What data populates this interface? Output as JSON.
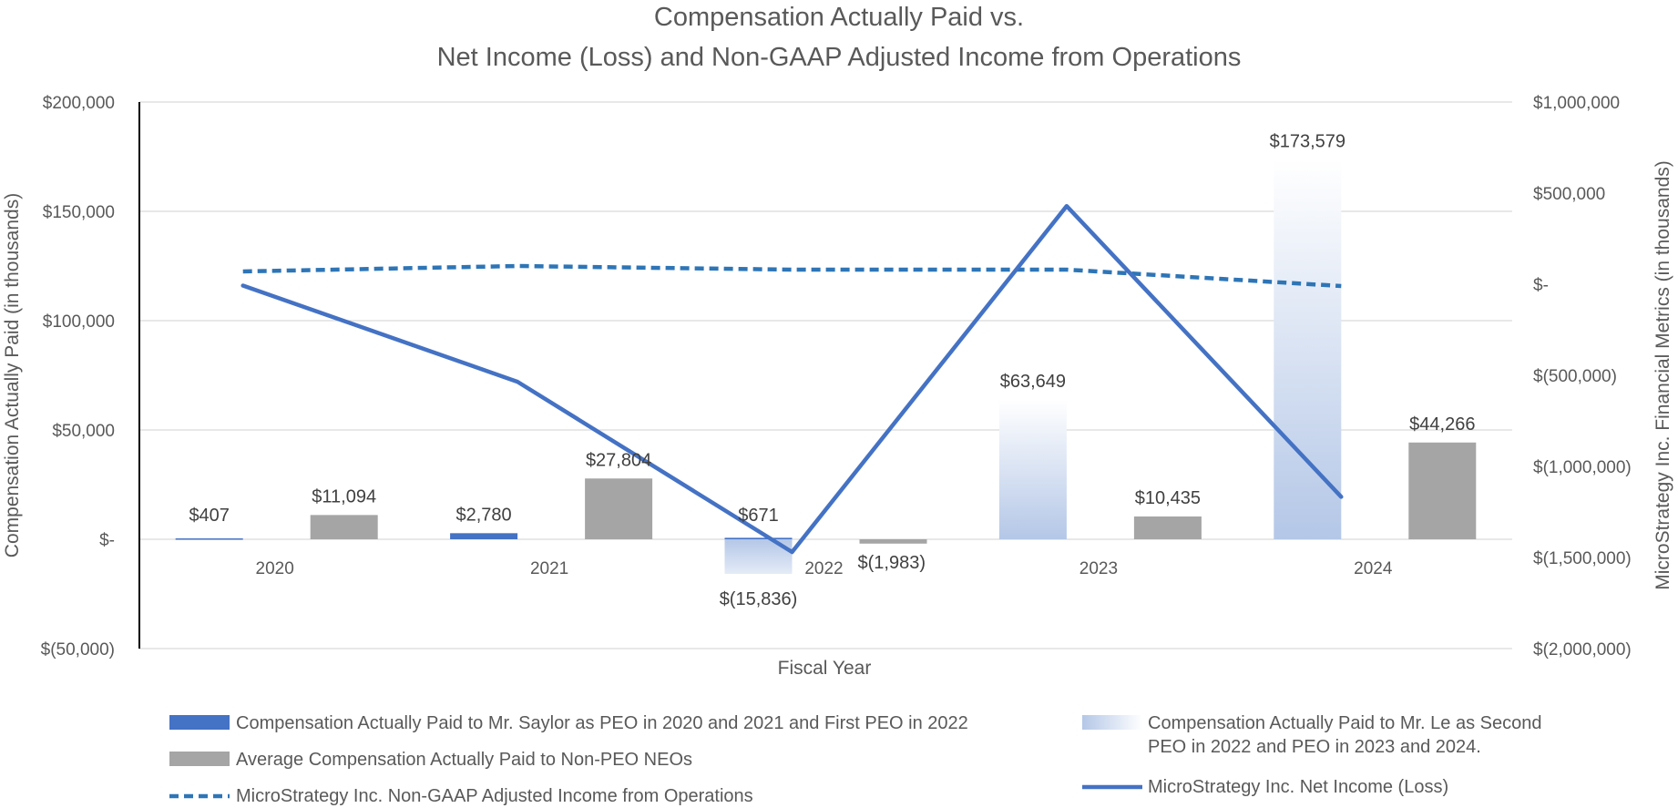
{
  "chart_data": {
    "type": "bar",
    "title_lines": [
      "Compensation Actually Paid vs.",
      "Net Income (Loss) and Non-GAAP Adjusted Income from Operations"
    ],
    "xlabel": "Fiscal Year",
    "ylabel_left": "Compensation Actually Paid (in thousands)",
    "ylabel_right": "MicroStrategy Inc. Financial Metrics (in thousands)",
    "ylim_left": [
      -50000,
      200000
    ],
    "ylim_right": [
      -2000000,
      1000000
    ],
    "left_ticks": [
      {
        "value": 200000,
        "label": "$200,000"
      },
      {
        "value": 150000,
        "label": "$150,000"
      },
      {
        "value": 100000,
        "label": "$100,000"
      },
      {
        "value": 50000,
        "label": "$50,000"
      },
      {
        "value": 0,
        "label": "$-"
      },
      {
        "value": -50000,
        "label": "$(50,000)"
      }
    ],
    "right_ticks": [
      {
        "value": 1000000,
        "label": "$1,000,000"
      },
      {
        "value": 500000,
        "label": "$500,000"
      },
      {
        "value": 0,
        "label": "$-"
      },
      {
        "value": -500000,
        "label": "$(500,000)"
      },
      {
        "value": -1000000,
        "label": "$(1,000,000)"
      },
      {
        "value": -1500000,
        "label": "$(1,500,000)"
      },
      {
        "value": -2000000,
        "label": "$(2,000,000)"
      }
    ],
    "categories": [
      "2020",
      "2021",
      "2022",
      "2023",
      "2024"
    ],
    "bar_series": [
      {
        "name": "Compensation Actually Paid to Mr. Saylor as PEO in 2020 and 2021 and First PEO in 2022",
        "color": "#4472c4",
        "values": [
          407,
          2780,
          671,
          null,
          null
        ],
        "labels": [
          "$407",
          "$2,780",
          "$671",
          "",
          ""
        ]
      },
      {
        "name": "Compensation Actually Paid to Mr. Le as Second PEO in 2022 and PEO in 2023 and 2024.",
        "color": "#b4c7e7",
        "values": [
          null,
          null,
          -15836,
          63649,
          173579
        ],
        "labels": [
          "",
          "",
          "$(15,836)",
          "$63,649",
          "$173,579"
        ]
      },
      {
        "name": "Average Compensation Actually Paid to Non-PEO NEOs",
        "color": "#a5a5a5",
        "values": [
          11094,
          27804,
          -1983,
          10435,
          44266
        ],
        "labels": [
          "$11,094",
          "$27,804",
          "$(1,983)",
          "$10,435",
          "$44,266"
        ]
      }
    ],
    "line_series": [
      {
        "name": "MicroStrategy Inc. Non-GAAP Adjusted Income from Operations",
        "color": "#2e75b6",
        "style": "dashed",
        "axis": "right",
        "values": [
          70000,
          100000,
          80000,
          80000,
          -10000
        ]
      },
      {
        "name": "MicroStrategy Inc. Net Income (Loss)",
        "color": "#4472c4",
        "style": "solid",
        "axis": "right",
        "values": [
          -7500,
          -535500,
          -1470000,
          429000,
          -1167000
        ]
      }
    ],
    "legend": {
      "col1": [
        "Compensation Actually Paid to Mr. Saylor as PEO in 2020 and 2021 and First PEO in 2022",
        "Average Compensation Actually Paid to Non-PEO NEOs",
        "MicroStrategy Inc. Non-GAAP Adjusted Income from Operations"
      ],
      "col2_line1": "Compensation Actually Paid to Mr. Le as Second",
      "col2_line2": "PEO in 2022 and PEO in 2023 and 2024.",
      "col2_last": "MicroStrategy Inc. Net Income (Loss)"
    },
    "gridlines": true
  }
}
